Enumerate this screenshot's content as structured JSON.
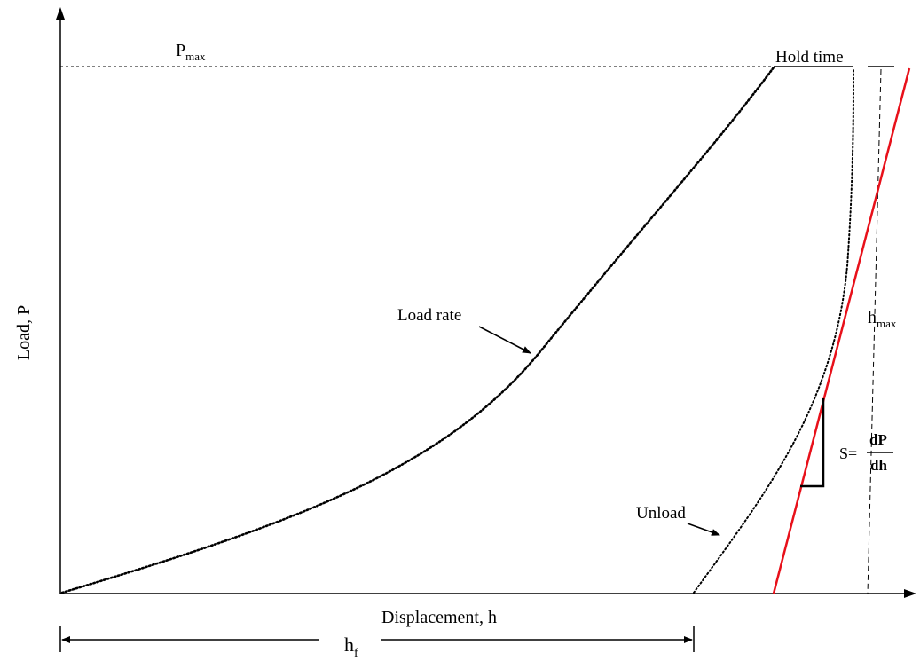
{
  "diagram": {
    "title": "",
    "labels": {
      "pmax_main": "P",
      "pmax_sub": "max",
      "hold_time": "Hold time",
      "load_rate": "Load rate",
      "unload": "Unload",
      "hmax_main": "h",
      "hmax_sub": "max",
      "stiffness_prefix": "S=",
      "stiffness_num": "dP",
      "stiffness_den": "dh",
      "x_axis": "Displacement, h",
      "y_axis": "Load, P",
      "hf_main": "h",
      "hf_sub": "f"
    },
    "colors": {
      "curve": "#000000",
      "tangent_line": "#e8101a",
      "background": "#ffffff"
    }
  }
}
